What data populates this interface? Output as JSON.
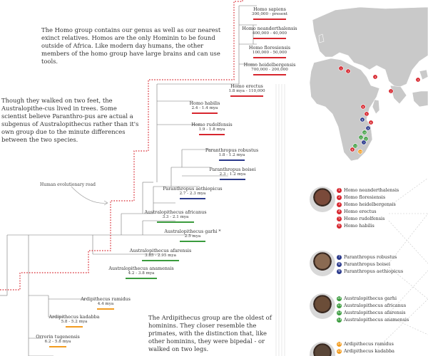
{
  "colors": {
    "homo": "#d7262e",
    "paranthropus": "#2b3a8c",
    "australopithecus": "#3a9b3d",
    "ardipithecus": "#f39c1f",
    "branch": "#777777",
    "road": "#d7262e",
    "land": "#c9c9c9"
  },
  "text": {
    "homo_intro": "The Homo group contains our genus as well as our nearest exinct relatives. Homos are the only Hominin to be found outside of Africa. Like modern day humans, the other members of the homo group have large brains and can use tools.",
    "australo_intro": "Though they walked on two feet, the Australopithe-­cus lived in trees.  Some scientist believe Paranthro-­pus are actual a subgenus of  Australopithecus rather than it's own group due to the minute differences between the two species.",
    "ardi_intro": "The Ardipithecus group are the oldest of hominins. They closer resemble the primates, with the distinction that, like other hominins, they were bipedal - or walked on two legs.",
    "road_label": "Human evolutionary road"
  },
  "species": [
    {
      "name": "Homo sapiens",
      "dates": "300,000 - present",
      "group": "homo"
    },
    {
      "name": "Homo neanderthalensis",
      "dates": "400,000 - 40,000",
      "group": "homo"
    },
    {
      "name": "Homo floresiensis",
      "dates": "100,000 - 50,000",
      "group": "homo"
    },
    {
      "name": "Homo heidelbergensis",
      "dates": "700,000 - 200,000",
      "group": "homo"
    },
    {
      "name": "Homo erectus",
      "dates": "1.8 mya - 110,000",
      "group": "homo"
    },
    {
      "name": "Homo habilis",
      "dates": "2.4 - 1.4 mya",
      "group": "homo"
    },
    {
      "name": "Homo rudolfensis",
      "dates": "1.9 - 1.8 mya",
      "group": "homo"
    },
    {
      "name": "Paranthropus robustus",
      "dates": "1.8 - 1.2 mya",
      "group": "paranthropus"
    },
    {
      "name": "Paranthropus boisei",
      "dates": "2.3 - 1.2 mya",
      "group": "paranthropus"
    },
    {
      "name": "Paranthropus aethiopicus",
      "dates": "2.7 - 2.3 mya",
      "group": "paranthropus"
    },
    {
      "name": "Australopithecus africanus",
      "dates": "3.3 - 2.1 mya",
      "group": "australopithecus"
    },
    {
      "name": "Australopithecus garhi *",
      "dates": "2.5 mya",
      "group": "australopithecus"
    },
    {
      "name": "Australopithecus afarensis",
      "dates": "3.85 - 2.95 mya",
      "group": "australopithecus"
    },
    {
      "name": "Australopithecus anamensis",
      "dates": "4.2 - 3.8 mya",
      "group": "australopithecus"
    },
    {
      "name": "Ardipithecus ramidus",
      "dates": "4.4 mya",
      "group": "ardipithecus"
    },
    {
      "name": "Ardipithecus kadabba",
      "dates": "5.8 - 5.2 mya",
      "group": "ardipithecus"
    },
    {
      "name": "Orrorin tugenensis",
      "dates": "6.2 - 5.8 mya",
      "group": "ardipithecus"
    }
  ],
  "legend_groups": [
    {
      "group": "homo",
      "portrait": "homo-portrait",
      "items": [
        {
          "n": "1",
          "label": "Homo neanderthalensis"
        },
        {
          "n": "2",
          "label": "Homo floresiensis"
        },
        {
          "n": "3",
          "label": "Homo heidelbergensis"
        },
        {
          "n": "4",
          "label": "Homo erectus"
        },
        {
          "n": "5",
          "label": "Homo rudolfensis"
        },
        {
          "n": "6",
          "label": "Homo habilis"
        }
      ]
    },
    {
      "group": "paranthropus",
      "portrait": "paranthropus-portrait",
      "items": [
        {
          "n": "7",
          "label": "Paranthropus robustus"
        },
        {
          "n": "8",
          "label": "Paranthropus boisei"
        },
        {
          "n": "9",
          "label": "Paranthropus aethiopicus"
        }
      ]
    },
    {
      "group": "australopithecus",
      "portrait": "australopithecus-portrait",
      "items": [
        {
          "n": "10",
          "label": "Australopithecus garhi"
        },
        {
          "n": "11",
          "label": "Australopithecus africanus"
        },
        {
          "n": "12",
          "label": "Australopithecus afarensis"
        },
        {
          "n": "13",
          "label": "Australopithecus anamensis"
        }
      ]
    },
    {
      "group": "ardipithecus",
      "portrait": "ardipithecus-portrait",
      "items": [
        {
          "n": "14",
          "label": "Ardipithecus ramidus"
        },
        {
          "n": "15",
          "label": "Ardipithecus kadabba"
        }
      ]
    }
  ],
  "map_pins": [
    "1",
    "3",
    "4",
    "4",
    "2",
    "6",
    "5",
    "6",
    "9",
    "8",
    "10",
    "11",
    "12",
    "13",
    "14",
    "7",
    "6"
  ]
}
